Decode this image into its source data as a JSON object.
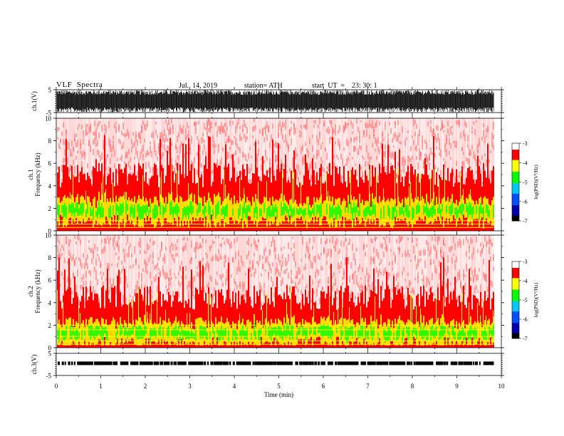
{
  "header": {
    "title": "VLF  Spectra",
    "date": "Jul.  14, 2019",
    "station": "station= ATH",
    "start": "start  UT  =    23: 30: 1"
  },
  "colors": {
    "waveform": "#000000",
    "spectrogram_background": "#ffffff",
    "colormap": [
      "#000000",
      "#0000b0",
      "#0050ff",
      "#00c8ff",
      "#00ff00",
      "#ffff00",
      "#ff0000",
      "#ffffff"
    ]
  },
  "chart_data": [
    {
      "type": "line",
      "panel": "ch1_waveform",
      "ylabel": "ch.1(V)",
      "ylim": [
        -5,
        5
      ],
      "yticks": [
        "5",
        "-5"
      ],
      "xlim": [
        0,
        10
      ],
      "description_values": {
        "fill_range": [
          -5,
          5
        ],
        "data_end_x": 9.83
      }
    },
    {
      "type": "heatmap",
      "panel": "ch1_spectrogram",
      "ylabel": "ch.1\nFrequency  (kHz)",
      "ylim": [
        0,
        10
      ],
      "yticks": [
        "0",
        "2",
        "4",
        "6",
        "8",
        "10"
      ],
      "xlim": [
        0,
        10
      ],
      "data_end_x": 9.83,
      "colorbar": {
        "label": "log(PSD)(V²/Hz)",
        "range": [
          -7,
          -3
        ],
        "ticks": [
          "-3",
          "-4",
          "-5",
          "-6",
          "-7"
        ]
      },
      "bands_khz": {
        "red_upper": 4.5,
        "green_center": 1.8,
        "green_halfwidth": 0.4,
        "baseline_lines": [
          0.3,
          0.6,
          0.9
        ]
      }
    },
    {
      "type": "heatmap",
      "panel": "ch2_spectrogram",
      "ylabel": "ch.2\nFrequency  (kHz)",
      "ylim": [
        0,
        10
      ],
      "yticks": [
        "0",
        "2",
        "4",
        "6",
        "8",
        "10"
      ],
      "xlim": [
        0,
        10
      ],
      "data_end_x": 9.83,
      "colorbar": {
        "label": "log(PSD)(V²/Hz)",
        "range": [
          -7,
          -3
        ],
        "ticks": [
          "-3",
          "-4",
          "-5",
          "-6",
          "-7"
        ]
      },
      "bands_khz": {
        "red_upper": 4.0,
        "green_center": 1.3,
        "green_halfwidth": 0.4,
        "baseline_lines": [
          0.3,
          0.6,
          1.0,
          1.6,
          2.0
        ]
      }
    },
    {
      "type": "line",
      "panel": "ch3_waveform",
      "ylabel": "ch.3(V)",
      "ylim": [
        -5,
        5
      ],
      "yticks": [
        "5",
        "-5"
      ],
      "xlim": [
        0,
        10
      ],
      "xlabel": "Time  (min)",
      "xticks": [
        "0",
        "1",
        "2",
        "3",
        "4",
        "5",
        "6",
        "7",
        "8",
        "9",
        "10"
      ],
      "level_v": 0.5,
      "data_end_x": 9.83
    }
  ]
}
